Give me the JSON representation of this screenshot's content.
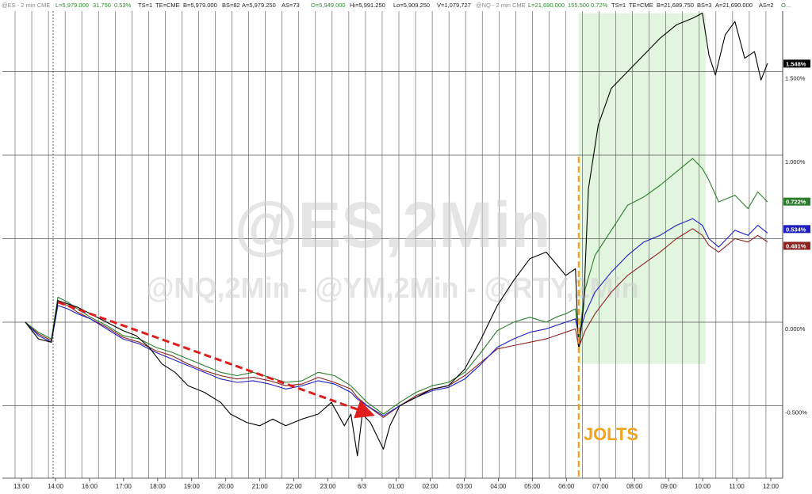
{
  "header": {
    "es": {
      "symbol": "@ES - 2 min  CME",
      "last": "L=5,979.000",
      "change": "31.750",
      "pct": "0.53%",
      "ts": "TS=1",
      "te": "TE=CME",
      "bid": "B=5,979.000",
      "bs": "BS=82",
      "ask": "A=5,979.250",
      "as": "AS=73",
      "open": "O=5,949.000",
      "high": "Hi=5,991.250",
      "low": "Lo=5,909.250",
      "vol": "V=1,079,727"
    },
    "nq": {
      "symbol": "@NQ - 2 min  CME",
      "last": "L=21,690.000",
      "change": "155.500",
      "pct": "0.72%",
      "ts": "TS=1",
      "te": "TE=CME",
      "bid": "B=21,689.750",
      "bs": "BS=3",
      "ask": "A=21,690.000",
      "as": "AS=2",
      "open": "O..."
    }
  },
  "watermark": {
    "main": "@ES,2Min",
    "sub": "@NQ,2Min - @YM,2Min - @RTY,2Min"
  },
  "event_label": "JOLTS",
  "colors": {
    "es": "#000000",
    "nq": "#2a7d2a",
    "ym": "#1f1fbf",
    "rty": "#8b2323",
    "arrow": "#e01e1e",
    "event": "#f2a31c",
    "shade": "#e2f5de",
    "grid": "#555555"
  },
  "chart_data": {
    "type": "line",
    "x_ticks": [
      "13:00",
      "14:00",
      "16:00",
      "17:00",
      "18:00",
      "19:00",
      "20:00",
      "21:00",
      "22:00",
      "23:00",
      "6/3",
      "01:00",
      "02:00",
      "03:00",
      "04:00",
      "05:00",
      "06:00",
      "07:00",
      "08:00",
      "09:00",
      "10:00",
      "11:00",
      "12:00"
    ],
    "y_ticks": [
      {
        "value": 1.5,
        "label": "1.500%"
      },
      {
        "value": 1.0,
        "label": "1.000%"
      },
      {
        "value": 0.5,
        "label": ""
      },
      {
        "value": 0.0,
        "label": "0.000%"
      },
      {
        "value": -0.5,
        "label": "-0.500%"
      }
    ],
    "ylim": [
      -0.93,
      1.95
    ],
    "x_range": [
      0,
      22.9
    ],
    "grid": true,
    "last_value_tags": [
      {
        "series": "ES",
        "label": "1.548%",
        "value": 1.548
      },
      {
        "series": "NQ",
        "label": "0.722%",
        "value": 0.722
      },
      {
        "series": "YM",
        "label": "0.534%",
        "value": 0.534
      },
      {
        "series": "RTY",
        "label": "0.481%",
        "value": 0.481
      }
    ],
    "series": [
      {
        "name": "ES",
        "points": [
          [
            0,
            0.0
          ],
          [
            0.4,
            -0.1
          ],
          [
            0.8,
            -0.12
          ],
          [
            1.0,
            0.13
          ],
          [
            1.3,
            0.11
          ],
          [
            1.6,
            0.09
          ],
          [
            2,
            0.05
          ],
          [
            2.5,
            0.0
          ],
          [
            3,
            -0.05
          ],
          [
            3.4,
            -0.08
          ],
          [
            3.8,
            -0.15
          ],
          [
            4.2,
            -0.25
          ],
          [
            4.6,
            -0.3
          ],
          [
            5,
            -0.38
          ],
          [
            5.5,
            -0.42
          ],
          [
            6,
            -0.48
          ],
          [
            6.3,
            -0.55
          ],
          [
            6.8,
            -0.6
          ],
          [
            7.2,
            -0.62
          ],
          [
            7.6,
            -0.58
          ],
          [
            8,
            -0.62
          ],
          [
            8.5,
            -0.58
          ],
          [
            9,
            -0.55
          ],
          [
            9.4,
            -0.48
          ],
          [
            9.8,
            -0.62
          ],
          [
            10.0,
            -0.55
          ],
          [
            10.2,
            -0.8
          ],
          [
            10.35,
            -0.55
          ],
          [
            10.6,
            -0.6
          ],
          [
            10.8,
            -0.68
          ],
          [
            11.0,
            -0.76
          ],
          [
            11.2,
            -0.62
          ],
          [
            11.5,
            -0.5
          ],
          [
            12,
            -0.45
          ],
          [
            12.5,
            -0.4
          ],
          [
            13,
            -0.38
          ],
          [
            13.5,
            -0.28
          ],
          [
            14,
            -0.1
          ],
          [
            14.5,
            0.1
          ],
          [
            15,
            0.25
          ],
          [
            15.5,
            0.38
          ],
          [
            16,
            0.42
          ],
          [
            16.3,
            0.35
          ],
          [
            16.6,
            0.28
          ],
          [
            16.9,
            0.32
          ],
          [
            17.0,
            -0.18
          ],
          [
            17.15,
            0.1
          ],
          [
            17.3,
            0.8
          ],
          [
            17.6,
            1.18
          ],
          [
            18,
            1.4
          ],
          [
            18.5,
            1.5
          ],
          [
            19,
            1.6
          ],
          [
            19.5,
            1.7
          ],
          [
            20,
            1.78
          ],
          [
            20.5,
            1.82
          ],
          [
            20.8,
            1.85
          ],
          [
            21,
            1.6
          ],
          [
            21.2,
            1.48
          ],
          [
            21.5,
            1.72
          ],
          [
            21.8,
            1.8
          ],
          [
            22.1,
            1.58
          ],
          [
            22.4,
            1.62
          ],
          [
            22.6,
            1.45
          ],
          [
            22.8,
            1.55
          ]
        ]
      },
      {
        "name": "NQ",
        "points": [
          [
            0,
            0.0
          ],
          [
            0.4,
            -0.06
          ],
          [
            0.8,
            -0.1
          ],
          [
            1.0,
            0.15
          ],
          [
            1.3,
            0.12
          ],
          [
            1.6,
            0.08
          ],
          [
            2,
            0.03
          ],
          [
            2.5,
            -0.02
          ],
          [
            3,
            -0.08
          ],
          [
            3.5,
            -0.1
          ],
          [
            4,
            -0.15
          ],
          [
            4.5,
            -0.18
          ],
          [
            5,
            -0.22
          ],
          [
            5.5,
            -0.26
          ],
          [
            6,
            -0.3
          ],
          [
            6.5,
            -0.32
          ],
          [
            7,
            -0.3
          ],
          [
            7.5,
            -0.33
          ],
          [
            8,
            -0.36
          ],
          [
            8.5,
            -0.35
          ],
          [
            9,
            -0.3
          ],
          [
            9.5,
            -0.32
          ],
          [
            10,
            -0.38
          ],
          [
            10.2,
            -0.42
          ],
          [
            10.5,
            -0.48
          ],
          [
            11,
            -0.55
          ],
          [
            11.5,
            -0.48
          ],
          [
            12,
            -0.42
          ],
          [
            12.5,
            -0.38
          ],
          [
            13,
            -0.36
          ],
          [
            13.5,
            -0.3
          ],
          [
            14,
            -0.18
          ],
          [
            14.5,
            -0.05
          ],
          [
            15,
            0.0
          ],
          [
            15.5,
            0.03
          ],
          [
            16,
            0.0
          ],
          [
            16.3,
            0.03
          ],
          [
            16.6,
            0.05
          ],
          [
            16.9,
            0.08
          ],
          [
            17.0,
            -0.1
          ],
          [
            17.2,
            0.2
          ],
          [
            17.5,
            0.4
          ],
          [
            18,
            0.55
          ],
          [
            18.5,
            0.7
          ],
          [
            19,
            0.75
          ],
          [
            19.5,
            0.82
          ],
          [
            20,
            0.9
          ],
          [
            20.5,
            0.98
          ],
          [
            20.8,
            0.92
          ],
          [
            21,
            0.85
          ],
          [
            21.3,
            0.72
          ],
          [
            21.8,
            0.76
          ],
          [
            22.2,
            0.68
          ],
          [
            22.5,
            0.78
          ],
          [
            22.8,
            0.72
          ]
        ]
      },
      {
        "name": "YM",
        "points": [
          [
            0,
            0.0
          ],
          [
            0.4,
            -0.08
          ],
          [
            0.8,
            -0.12
          ],
          [
            1.0,
            0.1
          ],
          [
            1.3,
            0.08
          ],
          [
            1.6,
            0.05
          ],
          [
            2,
            0.02
          ],
          [
            2.5,
            -0.04
          ],
          [
            3,
            -0.1
          ],
          [
            3.5,
            -0.13
          ],
          [
            4,
            -0.18
          ],
          [
            4.5,
            -0.22
          ],
          [
            5,
            -0.26
          ],
          [
            5.5,
            -0.3
          ],
          [
            6,
            -0.34
          ],
          [
            6.5,
            -0.36
          ],
          [
            7,
            -0.35
          ],
          [
            7.5,
            -0.37
          ],
          [
            8,
            -0.4
          ],
          [
            8.5,
            -0.38
          ],
          [
            9,
            -0.35
          ],
          [
            9.5,
            -0.37
          ],
          [
            10,
            -0.42
          ],
          [
            10.2,
            -0.46
          ],
          [
            10.5,
            -0.5
          ],
          [
            11,
            -0.56
          ],
          [
            11.5,
            -0.5
          ],
          [
            12,
            -0.45
          ],
          [
            12.5,
            -0.41
          ],
          [
            13,
            -0.39
          ],
          [
            13.5,
            -0.34
          ],
          [
            14,
            -0.25
          ],
          [
            14.5,
            -0.15
          ],
          [
            15,
            -0.1
          ],
          [
            15.5,
            -0.06
          ],
          [
            16,
            -0.04
          ],
          [
            16.3,
            -0.02
          ],
          [
            16.6,
            0.0
          ],
          [
            16.9,
            0.02
          ],
          [
            17.0,
            -0.08
          ],
          [
            17.2,
            0.05
          ],
          [
            17.5,
            0.18
          ],
          [
            18,
            0.3
          ],
          [
            18.5,
            0.4
          ],
          [
            19,
            0.48
          ],
          [
            19.5,
            0.52
          ],
          [
            20,
            0.58
          ],
          [
            20.5,
            0.62
          ],
          [
            20.8,
            0.58
          ],
          [
            21,
            0.5
          ],
          [
            21.3,
            0.45
          ],
          [
            21.8,
            0.55
          ],
          [
            22.2,
            0.52
          ],
          [
            22.5,
            0.58
          ],
          [
            22.8,
            0.534
          ]
        ]
      },
      {
        "name": "RTY",
        "points": [
          [
            0,
            0.0
          ],
          [
            0.4,
            -0.07
          ],
          [
            0.8,
            -0.11
          ],
          [
            1.0,
            0.12
          ],
          [
            1.3,
            0.1
          ],
          [
            1.6,
            0.06
          ],
          [
            2,
            0.02
          ],
          [
            2.5,
            -0.03
          ],
          [
            3,
            -0.09
          ],
          [
            3.5,
            -0.12
          ],
          [
            4,
            -0.17
          ],
          [
            4.5,
            -0.2
          ],
          [
            5,
            -0.25
          ],
          [
            5.5,
            -0.29
          ],
          [
            6,
            -0.32
          ],
          [
            6.5,
            -0.34
          ],
          [
            7,
            -0.33
          ],
          [
            7.5,
            -0.35
          ],
          [
            8,
            -0.38
          ],
          [
            8.5,
            -0.37
          ],
          [
            9,
            -0.33
          ],
          [
            9.5,
            -0.36
          ],
          [
            10,
            -0.4
          ],
          [
            10.2,
            -0.45
          ],
          [
            10.5,
            -0.5
          ],
          [
            11,
            -0.57
          ],
          [
            11.5,
            -0.5
          ],
          [
            12,
            -0.44
          ],
          [
            12.5,
            -0.4
          ],
          [
            13,
            -0.38
          ],
          [
            13.5,
            -0.32
          ],
          [
            14,
            -0.24
          ],
          [
            14.5,
            -0.16
          ],
          [
            15,
            -0.14
          ],
          [
            15.5,
            -0.12
          ],
          [
            16,
            -0.1
          ],
          [
            16.3,
            -0.08
          ],
          [
            16.6,
            -0.06
          ],
          [
            16.9,
            -0.04
          ],
          [
            17.0,
            -0.15
          ],
          [
            17.2,
            -0.05
          ],
          [
            17.5,
            0.05
          ],
          [
            18,
            0.18
          ],
          [
            18.5,
            0.28
          ],
          [
            19,
            0.35
          ],
          [
            19.5,
            0.42
          ],
          [
            20,
            0.5
          ],
          [
            20.5,
            0.56
          ],
          [
            20.8,
            0.52
          ],
          [
            21,
            0.46
          ],
          [
            21.3,
            0.42
          ],
          [
            21.8,
            0.5
          ],
          [
            22.2,
            0.48
          ],
          [
            22.5,
            0.52
          ],
          [
            22.8,
            0.481
          ]
        ]
      }
    ],
    "annotations": [
      {
        "type": "arrow",
        "label": "",
        "from": [
          1.0,
          0.12
        ],
        "to": [
          10.6,
          -0.55
        ]
      },
      {
        "type": "vline",
        "label": "JOLTS",
        "x": 17.0
      },
      {
        "type": "shaded_region",
        "label": "",
        "x_from": 17.0,
        "x_to": 20.9,
        "y_from": -0.25,
        "y_to": 1.85
      }
    ]
  }
}
